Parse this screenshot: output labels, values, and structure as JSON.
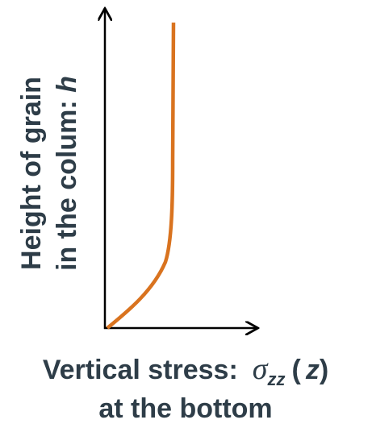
{
  "y_axis_label": {
    "line1": "Height of grain",
    "line2": "in the colum:",
    "variable": "h"
  },
  "x_axis_label": {
    "line1": "Vertical stress:",
    "symbol": "σ",
    "subscript": "zz",
    "argument_open": "(",
    "argument": "z",
    "argument_close": ")",
    "line2": "at the bottom"
  }
}
